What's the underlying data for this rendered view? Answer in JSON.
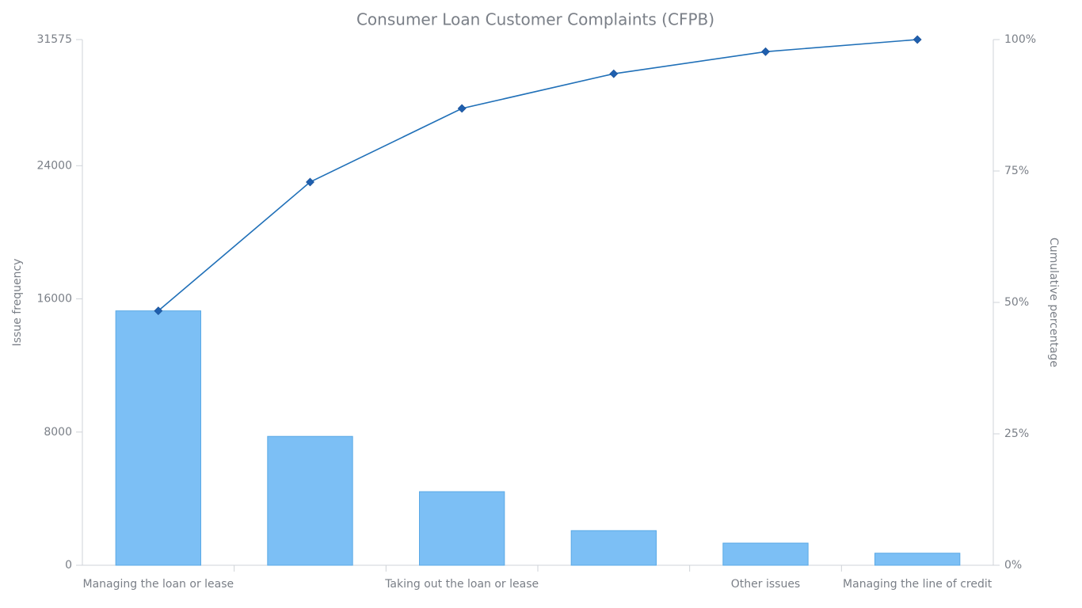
{
  "chart_data": {
    "type": "pareto",
    "title": "Consumer Loan Customer Complaints (CFPB)",
    "y_label": "Issue frequency",
    "y2_label": "Cumulative percentage",
    "categories": [
      "Managing the loan or lease",
      null,
      "Taking out the loan or lease",
      null,
      "Other issues",
      "Managing the line of credit"
    ],
    "series": [
      {
        "type": "bar",
        "color": "#7cbff5",
        "values": [
          15280,
          7740,
          4420,
          2080,
          1330,
          725
        ]
      },
      {
        "type": "line",
        "color": "#2070b8",
        "axis": "y2",
        "values": [
          48.4,
          72.9,
          86.9,
          93.5,
          97.7,
          100
        ]
      }
    ],
    "ylim": [
      0,
      31575
    ],
    "yticks": [
      0,
      8000,
      16000,
      24000,
      31575
    ],
    "y2lim": [
      0,
      100
    ],
    "y2ticks": [
      {
        "value": 0,
        "label": "0%"
      },
      {
        "value": 25,
        "label": "25%"
      },
      {
        "value": 50,
        "label": "50%"
      },
      {
        "value": 75,
        "label": "75%"
      },
      {
        "value": 100,
        "label": "100%"
      }
    ]
  }
}
